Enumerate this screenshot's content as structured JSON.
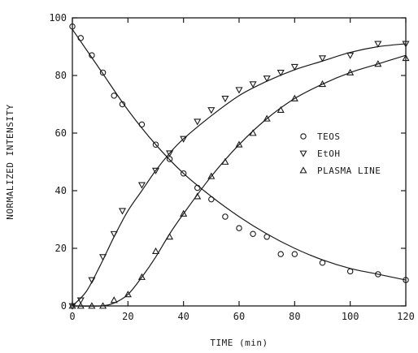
{
  "chart_data": {
    "type": "scatter",
    "title": "",
    "xlabel": "TIME (min)",
    "ylabel": "NORMALIZED INTENSITY",
    "xlim": [
      0,
      120
    ],
    "ylim": [
      0,
      100
    ],
    "xticks": [
      0,
      20,
      40,
      60,
      80,
      100,
      120
    ],
    "yticks": [
      0,
      20,
      40,
      60,
      80,
      100
    ],
    "grid": false,
    "legend_position": "right",
    "series": [
      {
        "name": "TEOS",
        "marker": "circle",
        "x": [
          0,
          3,
          7,
          11,
          15,
          18,
          25,
          30,
          35,
          40,
          45,
          50,
          55,
          60,
          65,
          70,
          75,
          80,
          90,
          100,
          110,
          120
        ],
        "y": [
          97,
          93,
          87,
          81,
          73,
          70,
          63,
          56,
          51,
          46,
          41,
          37,
          31,
          27,
          25,
          24,
          18,
          18,
          15,
          12,
          11,
          9
        ],
        "fit": [
          [
            0,
            96
          ],
          [
            10,
            82
          ],
          [
            20,
            68
          ],
          [
            30,
            56
          ],
          [
            40,
            46
          ],
          [
            50,
            38
          ],
          [
            60,
            31
          ],
          [
            70,
            25
          ],
          [
            80,
            20
          ],
          [
            90,
            16
          ],
          [
            100,
            13
          ],
          [
            110,
            11
          ],
          [
            120,
            9
          ]
        ]
      },
      {
        "name": "EtOH",
        "marker": "triangle-down",
        "x": [
          0,
          3,
          7,
          11,
          15,
          18,
          25,
          30,
          35,
          40,
          45,
          50,
          55,
          60,
          65,
          70,
          75,
          80,
          90,
          100,
          110,
          120
        ],
        "y": [
          0,
          2,
          9,
          17,
          25,
          33,
          42,
          47,
          53,
          58,
          64,
          68,
          72,
          75,
          77,
          79,
          81,
          83,
          86,
          87,
          91,
          91
        ],
        "fit": [
          [
            0,
            0
          ],
          [
            5,
            5
          ],
          [
            10,
            14
          ],
          [
            15,
            24
          ],
          [
            20,
            33
          ],
          [
            25,
            40
          ],
          [
            30,
            47
          ],
          [
            35,
            53
          ],
          [
            40,
            58
          ],
          [
            50,
            66
          ],
          [
            60,
            73
          ],
          [
            70,
            78
          ],
          [
            80,
            82
          ],
          [
            90,
            85
          ],
          [
            100,
            88
          ],
          [
            110,
            90
          ],
          [
            120,
            91
          ]
        ]
      },
      {
        "name": "PLASMA LINE",
        "marker": "triangle-up",
        "x": [
          0,
          3,
          7,
          11,
          15,
          20,
          25,
          30,
          35,
          40,
          45,
          50,
          55,
          60,
          65,
          70,
          75,
          80,
          90,
          100,
          110,
          120
        ],
        "y": [
          0,
          0,
          0,
          0,
          2,
          4,
          10,
          19,
          24,
          32,
          38,
          45,
          50,
          56,
          60,
          65,
          68,
          72,
          77,
          81,
          84,
          86
        ],
        "fit": [
          [
            0,
            0
          ],
          [
            10,
            0
          ],
          [
            15,
            1
          ],
          [
            20,
            4
          ],
          [
            25,
            10
          ],
          [
            30,
            17
          ],
          [
            35,
            25
          ],
          [
            40,
            32
          ],
          [
            50,
            45
          ],
          [
            60,
            56
          ],
          [
            70,
            65
          ],
          [
            80,
            72
          ],
          [
            90,
            77
          ],
          [
            100,
            81
          ],
          [
            110,
            84
          ],
          [
            120,
            87
          ]
        ]
      }
    ]
  }
}
